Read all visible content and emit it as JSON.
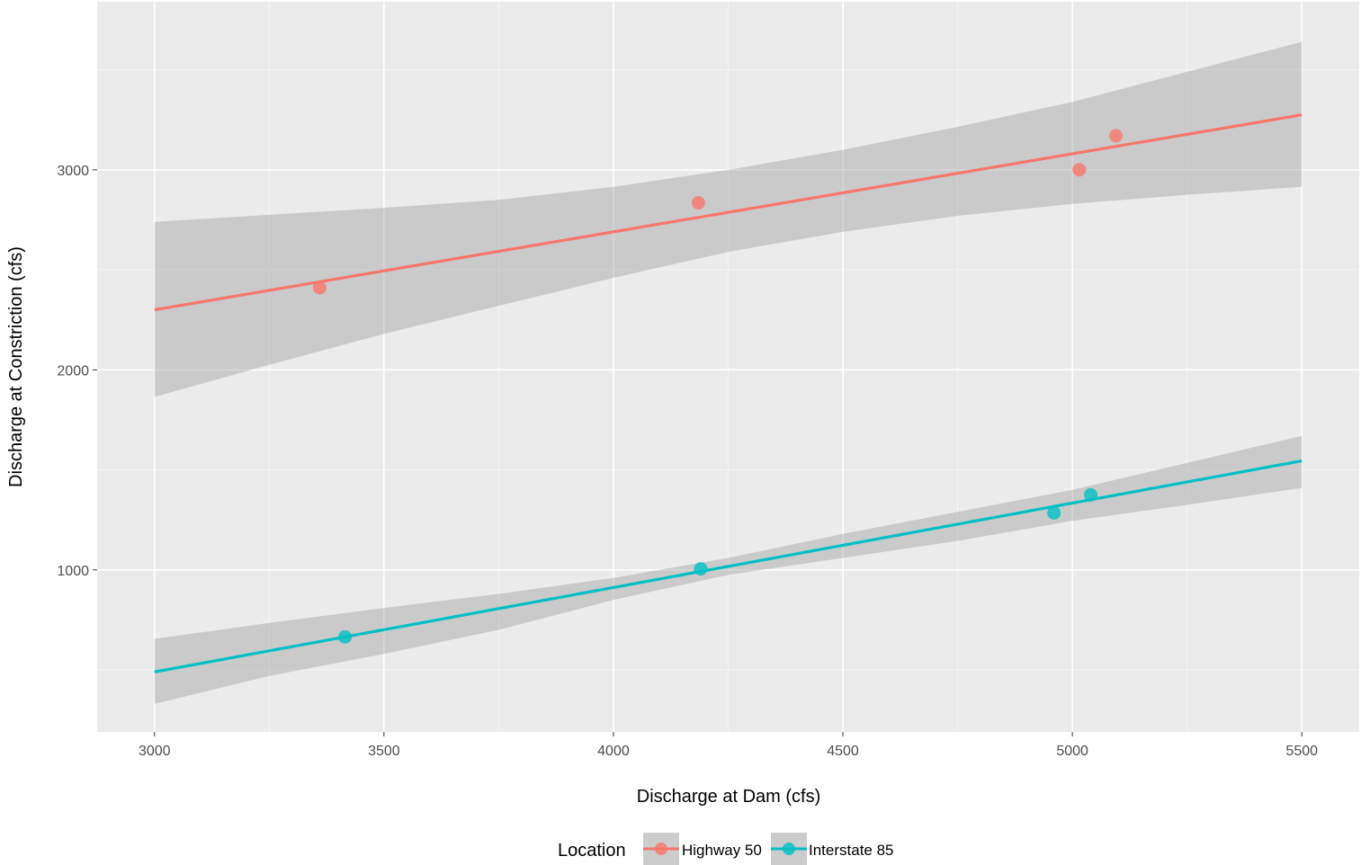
{
  "chart_data": {
    "type": "scatter",
    "xlabel": "Discharge at Dam (cfs)",
    "ylabel": "Discharge at Constriction (cfs)",
    "xlim": [
      2875,
      5625
    ],
    "ylim": [
      190,
      3840
    ],
    "x_ticks": [
      3000,
      3500,
      4000,
      4500,
      5000,
      5500
    ],
    "y_ticks": [
      1000,
      2000,
      3000
    ],
    "x_tick_labels": [
      "3000",
      "3500",
      "4000",
      "4500",
      "5000",
      "5500"
    ],
    "y_tick_labels": [
      "1000",
      "2000",
      "3000"
    ],
    "grid": true,
    "legend": {
      "title": "Location",
      "position": "bottom"
    },
    "series": [
      {
        "name": "Highway 50",
        "color": "#F8766D",
        "points": [
          {
            "x": 3360,
            "y": 2410
          },
          {
            "x": 4185,
            "y": 2835
          },
          {
            "x": 5015,
            "y": 3000
          },
          {
            "x": 5095,
            "y": 3170
          }
        ],
        "fit": {
          "x": [
            3000,
            5500
          ],
          "y": [
            2300,
            3275
          ]
        },
        "band": {
          "x": [
            3000,
            3250,
            3500,
            3750,
            4000,
            4250,
            4500,
            4750,
            5000,
            5250,
            5500
          ],
          "upper": [
            2740,
            2775,
            2810,
            2850,
            2915,
            3000,
            3100,
            3215,
            3340,
            3490,
            3640
          ],
          "lower": [
            1865,
            2025,
            2180,
            2320,
            2460,
            2590,
            2690,
            2770,
            2830,
            2875,
            2915
          ]
        }
      },
      {
        "name": "Interstate 85",
        "color": "#00BFC4",
        "points": [
          {
            "x": 3415,
            "y": 665
          },
          {
            "x": 4190,
            "y": 1005
          },
          {
            "x": 4960,
            "y": 1285
          },
          {
            "x": 5040,
            "y": 1375
          }
        ],
        "fit": {
          "x": [
            3000,
            5500
          ],
          "y": [
            490,
            1545
          ]
        },
        "band": {
          "x": [
            3000,
            3250,
            3500,
            3750,
            4000,
            4250,
            4500,
            4750,
            5000,
            5250,
            5500
          ],
          "upper": [
            655,
            735,
            810,
            880,
            960,
            1060,
            1180,
            1290,
            1400,
            1535,
            1670
          ],
          "lower": [
            330,
            470,
            580,
            700,
            850,
            975,
            1060,
            1145,
            1245,
            1325,
            1410
          ]
        }
      }
    ]
  }
}
